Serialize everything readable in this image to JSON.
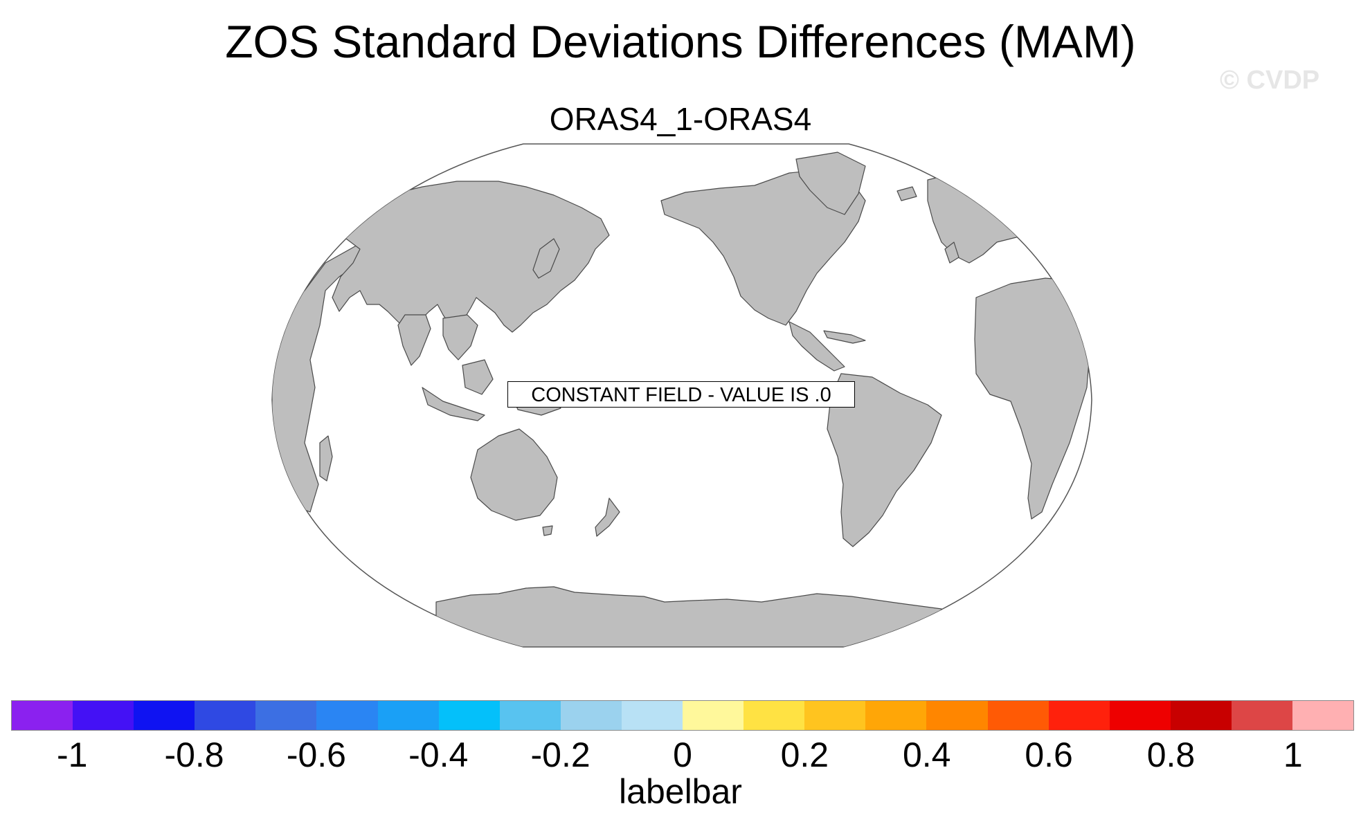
{
  "title": "ZOS Standard Deviations Differences (MAM)",
  "watermark": "© CVDP",
  "subtitle": "ORAS4_1-ORAS4",
  "map": {
    "projection": "Robinson-like world map centered on the Pacific",
    "land_color": "#bebebe",
    "ocean_color": "#ffffff",
    "constant_field_label": "CONSTANT FIELD - VALUE IS .0"
  },
  "colorbar": {
    "label": "labelbar",
    "colors": [
      "#8b21ef",
      "#4411f5",
      "#0f13f2",
      "#2f49e3",
      "#3c6fe3",
      "#2a85f3",
      "#1aa0f6",
      "#04c0fa",
      "#58c3f0",
      "#9bd2ee",
      "#b8e1f5",
      "#fff89b",
      "#ffe243",
      "#ffc41f",
      "#ffa607",
      "#ff8600",
      "#ff5a05",
      "#ff210c",
      "#ee0000",
      "#c80000",
      "#dd4646",
      "#ffb0b2"
    ],
    "ticks": [
      "-1",
      "-0.8",
      "-0.6",
      "-0.4",
      "-0.2",
      "0",
      "0.2",
      "0.4",
      "0.6",
      "0.8",
      "1"
    ]
  }
}
